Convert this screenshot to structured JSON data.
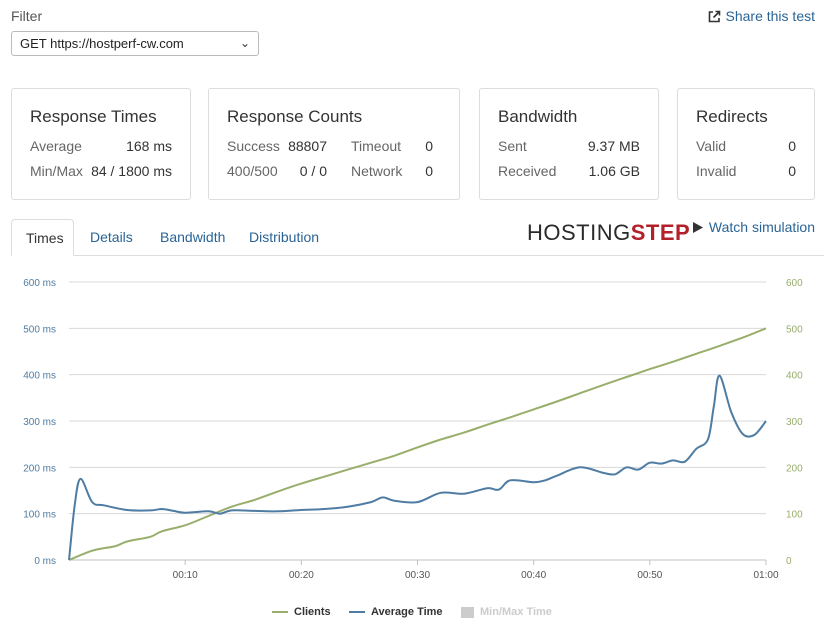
{
  "filter": {
    "label": "Filter",
    "selected": "GET https://hostperf-cw.com"
  },
  "share": {
    "label": "Share this test"
  },
  "cards": {
    "response_times": {
      "title": "Response Times",
      "rows": [
        {
          "label": "Average",
          "value": "168 ms"
        },
        {
          "label": "Min/Max",
          "value": "84 / 1800 ms"
        }
      ]
    },
    "response_counts": {
      "title": "Response Counts",
      "rows": [
        {
          "label": "Success",
          "value": "88807",
          "label2": "Timeout",
          "value2": "0"
        },
        {
          "label": "400/500",
          "value": "0 / 0",
          "label2": "Network",
          "value2": "0"
        }
      ]
    },
    "bandwidth": {
      "title": "Bandwidth",
      "rows": [
        {
          "label": "Sent",
          "value": "9.37 MB"
        },
        {
          "label": "Received",
          "value": "1.06 GB"
        }
      ]
    },
    "redirects": {
      "title": "Redirects",
      "rows": [
        {
          "label": "Valid",
          "value": "0"
        },
        {
          "label": "Invalid",
          "value": "0"
        }
      ]
    }
  },
  "tabs": [
    {
      "label": "Times",
      "active": true
    },
    {
      "label": "Details"
    },
    {
      "label": "Bandwidth"
    },
    {
      "label": "Distribution"
    }
  ],
  "logo": {
    "part1": "HOSTING",
    "part2": "STEP"
  },
  "watch": {
    "label": "Watch simulation"
  },
  "colors": {
    "clients": "#99ae6b",
    "avg": "#4f7ca3",
    "minmax": "#cccccc",
    "link": "#2a6496",
    "logo_red": "#b3202a"
  },
  "chart_data": {
    "type": "line",
    "x_ticks": [
      "00:10",
      "00:20",
      "00:30",
      "00:40",
      "00:50",
      "01:00"
    ],
    "y_left_ticks": [
      "0 ms",
      "100 ms",
      "200 ms",
      "300 ms",
      "400 ms",
      "500 ms",
      "600 ms"
    ],
    "y_right_ticks": [
      "0",
      "100",
      "200",
      "300",
      "400",
      "500",
      "600"
    ],
    "ylim": [
      0,
      600
    ],
    "xlim": [
      0,
      60
    ],
    "legend": [
      "Clients",
      "Average Time",
      "Min/Max Time"
    ],
    "series": [
      {
        "name": "Clients",
        "axis": "right",
        "points": [
          [
            0,
            0
          ],
          [
            2,
            20
          ],
          [
            4,
            30
          ],
          [
            5,
            40
          ],
          [
            7,
            50
          ],
          [
            8,
            62
          ],
          [
            10,
            75
          ],
          [
            12,
            95
          ],
          [
            14,
            115
          ],
          [
            16,
            130
          ],
          [
            18,
            148
          ],
          [
            20,
            165
          ],
          [
            22,
            180
          ],
          [
            24,
            195
          ],
          [
            26,
            210
          ],
          [
            28,
            225
          ],
          [
            30,
            243
          ],
          [
            32,
            260
          ],
          [
            34,
            275
          ],
          [
            36,
            292
          ],
          [
            38,
            308
          ],
          [
            40,
            325
          ],
          [
            42,
            342
          ],
          [
            44,
            360
          ],
          [
            46,
            378
          ],
          [
            48,
            395
          ],
          [
            50,
            412
          ],
          [
            52,
            428
          ],
          [
            54,
            445
          ],
          [
            56,
            462
          ],
          [
            58,
            480
          ],
          [
            60,
            500
          ]
        ]
      },
      {
        "name": "Average Time",
        "axis": "left",
        "points": [
          [
            0,
            0
          ],
          [
            0.5,
            120
          ],
          [
            1,
            175
          ],
          [
            2,
            125
          ],
          [
            3,
            118
          ],
          [
            5,
            108
          ],
          [
            7,
            107
          ],
          [
            8,
            110
          ],
          [
            9,
            106
          ],
          [
            10,
            102
          ],
          [
            12,
            105
          ],
          [
            13,
            100
          ],
          [
            14,
            107
          ],
          [
            16,
            106
          ],
          [
            18,
            105
          ],
          [
            20,
            108
          ],
          [
            22,
            110
          ],
          [
            24,
            115
          ],
          [
            26,
            125
          ],
          [
            27,
            135
          ],
          [
            28,
            128
          ],
          [
            30,
            125
          ],
          [
            32,
            145
          ],
          [
            34,
            143
          ],
          [
            36,
            155
          ],
          [
            37,
            152
          ],
          [
            38,
            172
          ],
          [
            40,
            168
          ],
          [
            41,
            172
          ],
          [
            42,
            182
          ],
          [
            44,
            200
          ],
          [
            46,
            188
          ],
          [
            47,
            185
          ],
          [
            48,
            200
          ],
          [
            49,
            195
          ],
          [
            50,
            210
          ],
          [
            51,
            208
          ],
          [
            52,
            215
          ],
          [
            53,
            212
          ],
          [
            54,
            240
          ],
          [
            55,
            260
          ],
          [
            55.5,
            330
          ],
          [
            56,
            398
          ],
          [
            57,
            320
          ],
          [
            58,
            272
          ],
          [
            59,
            270
          ],
          [
            60,
            300
          ]
        ]
      }
    ]
  }
}
